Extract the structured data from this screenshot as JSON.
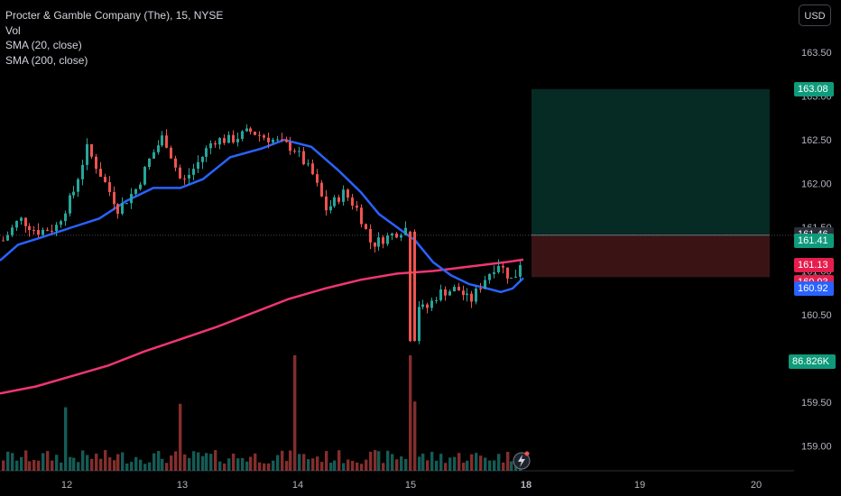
{
  "legend": {
    "symbol": "Procter & Gamble Company (The), 15, NYSE",
    "vol": "Vol",
    "sma20": "SMA (20, close)",
    "sma200": "SMA (200, close)"
  },
  "currency": "USD",
  "price_axis": [
    "163.50",
    "163.00",
    "162.50",
    "162.00",
    "161.50",
    "161.00",
    "160.50",
    "160.00",
    "159.50",
    "159.00"
  ],
  "time_axis": [
    "12",
    "13",
    "14",
    "15",
    "18",
    "19",
    "20"
  ],
  "price_labels": {
    "target": "163.08",
    "last": "161.46",
    "entry": "161.41",
    "sma200": "161.13",
    "stop": "160.93",
    "sma20": "160.92",
    "volume": "86.826K"
  },
  "colors": {
    "up": "#26a69a",
    "down": "#ef5350",
    "sma20": "#2962ff",
    "sma200": "#f23574",
    "profit_zone": "#062a24",
    "loss_zone": "#3a1414",
    "target_label": "#0f9b7b",
    "last_label": "#2a2e39",
    "entry_label": "#0f9b7b",
    "stop_label": "#e61e4d",
    "volume_label": "#0f9b7b"
  },
  "chart_data": {
    "type": "candlestick",
    "ylim": [
      158.78,
      163.95
    ],
    "position_tool": {
      "entry": 161.41,
      "target": 163.08,
      "stop": 160.93
    },
    "last_price": 161.46
  }
}
